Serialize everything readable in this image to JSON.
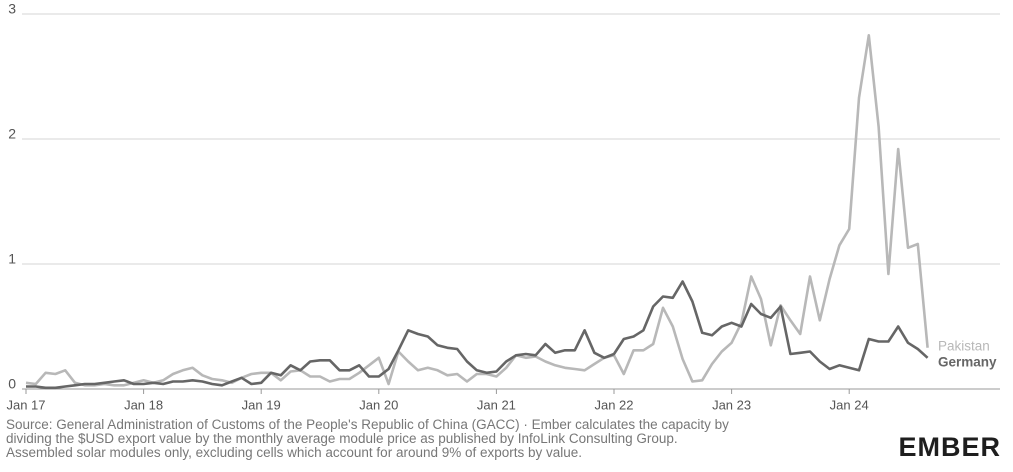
{
  "chart_data": {
    "type": "line",
    "x": [
      "Jan 17",
      null,
      null,
      null,
      null,
      null,
      null,
      null,
      null,
      null,
      null,
      null,
      "Jan 18",
      null,
      null,
      null,
      null,
      null,
      null,
      null,
      null,
      null,
      null,
      null,
      "Jan 19",
      null,
      null,
      null,
      null,
      null,
      null,
      null,
      null,
      null,
      null,
      null,
      "Jan 20",
      null,
      null,
      null,
      null,
      null,
      null,
      null,
      null,
      null,
      null,
      null,
      "Jan 21",
      null,
      null,
      null,
      null,
      null,
      null,
      null,
      null,
      null,
      null,
      null,
      "Jan 22",
      null,
      null,
      null,
      null,
      null,
      null,
      null,
      null,
      null,
      null,
      null,
      "Jan 23",
      null,
      null,
      null,
      null,
      null,
      null,
      null,
      null,
      null,
      null,
      null,
      "Jan 24",
      null,
      null,
      null,
      null,
      null,
      null,
      null,
      null
    ],
    "series": [
      {
        "name": "Pakistan",
        "color": "#b8b8b8",
        "values": [
          0.05,
          0.04,
          0.13,
          0.12,
          0.15,
          0.05,
          0.03,
          0.03,
          0.04,
          0.03,
          0.03,
          0.05,
          0.07,
          0.05,
          0.07,
          0.12,
          0.15,
          0.17,
          0.11,
          0.08,
          0.07,
          0.05,
          0.09,
          0.12,
          0.13,
          0.13,
          0.07,
          0.14,
          0.15,
          0.1,
          0.1,
          0.06,
          0.08,
          0.08,
          0.13,
          0.19,
          0.25,
          0.04,
          0.3,
          0.22,
          0.15,
          0.17,
          0.15,
          0.11,
          0.12,
          0.06,
          0.12,
          0.12,
          0.1,
          0.17,
          0.27,
          0.25,
          0.26,
          0.22,
          0.19,
          0.17,
          0.16,
          0.15,
          0.2,
          0.25,
          0.27,
          0.12,
          0.31,
          0.31,
          0.36,
          0.65,
          0.5,
          0.24,
          0.06,
          0.07,
          0.2,
          0.3,
          0.37,
          0.53,
          0.9,
          0.72,
          0.35,
          0.67,
          0.55,
          0.44,
          0.9,
          0.55,
          0.88,
          1.15,
          1.28,
          2.33,
          2.83,
          2.1,
          0.92,
          1.92,
          1.13,
          1.16,
          0.33
        ]
      },
      {
        "name": "Germany",
        "color": "#666666",
        "values": [
          0.02,
          0.02,
          0.01,
          0.01,
          0.02,
          0.03,
          0.04,
          0.04,
          0.05,
          0.06,
          0.07,
          0.04,
          0.04,
          0.05,
          0.04,
          0.06,
          0.06,
          0.07,
          0.06,
          0.04,
          0.03,
          0.06,
          0.09,
          0.04,
          0.05,
          0.13,
          0.11,
          0.19,
          0.15,
          0.22,
          0.23,
          0.23,
          0.15,
          0.15,
          0.19,
          0.1,
          0.1,
          0.16,
          0.31,
          0.47,
          0.44,
          0.42,
          0.35,
          0.33,
          0.32,
          0.22,
          0.15,
          0.13,
          0.14,
          0.22,
          0.27,
          0.28,
          0.27,
          0.36,
          0.29,
          0.31,
          0.31,
          0.47,
          0.29,
          0.25,
          0.28,
          0.4,
          0.42,
          0.47,
          0.66,
          0.74,
          0.73,
          0.86,
          0.7,
          0.45,
          0.43,
          0.5,
          0.53,
          0.5,
          0.68,
          0.6,
          0.57,
          0.66,
          0.28,
          0.29,
          0.3,
          0.22,
          0.16,
          0.19,
          0.17,
          0.15,
          0.4,
          0.38,
          0.38,
          0.5,
          0.37,
          0.32,
          0.25
        ]
      }
    ],
    "ylim": [
      0,
      3
    ],
    "yticks": [
      0,
      1,
      2,
      3
    ],
    "grid": true
  },
  "source": [
    "Source: General Administration of Customs of the People's Republic of China (GACC) · Ember calculates the capacity by",
    "dividing the $USD export value by the monthly average module price as published by InfoLink Consulting Group.",
    "Assembled solar modules only, excluding cells which account for around 9% of exports by value."
  ],
  "logo": "EMBER"
}
